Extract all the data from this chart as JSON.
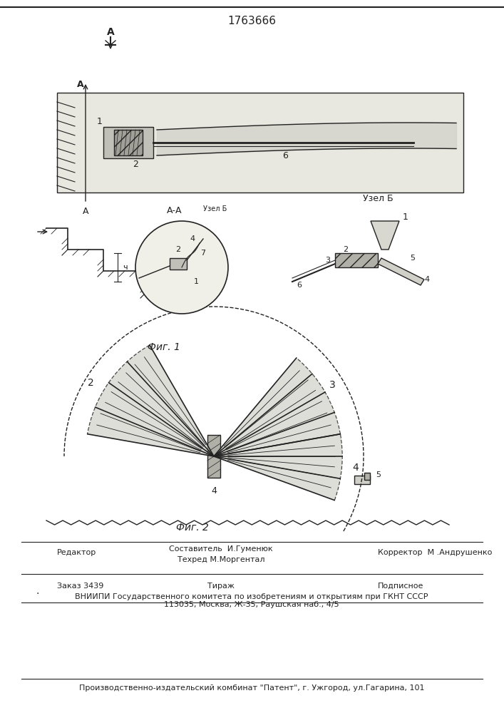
{
  "patent_number": "1763666",
  "fig1_label": "Фиг. 1",
  "fig2_label": "Фиг. 2",
  "uzl_b_label": "Узел Б",
  "a_a_label": "А-А",
  "editor_line": "Редактор",
  "composer_line": "Составитель  И.Гуменюк",
  "techred_line": "Техред М.Моргентал",
  "corrector_line": "Корректор  М .Андрушенко",
  "zakaz_line": "Заказ 3439",
  "tirazh_line": "Тираж",
  "podpisnoe_line": "Подписное",
  "vniip_line": "ВНИИПИ Государственного комитета по изобретениям и открытиям при ГКНТ СССР",
  "addr_line": "113035, Москва, Ж-35, Раушская наб., 4/5",
  "publisher_line": "Производственно-издательский комбинат \"Патент\", г. Ужгород, ул.Гагарина, 101",
  "bg_color": "#f5f5f0",
  "line_color": "#222222",
  "fill_color": "#888888",
  "hatch_color": "#444444"
}
